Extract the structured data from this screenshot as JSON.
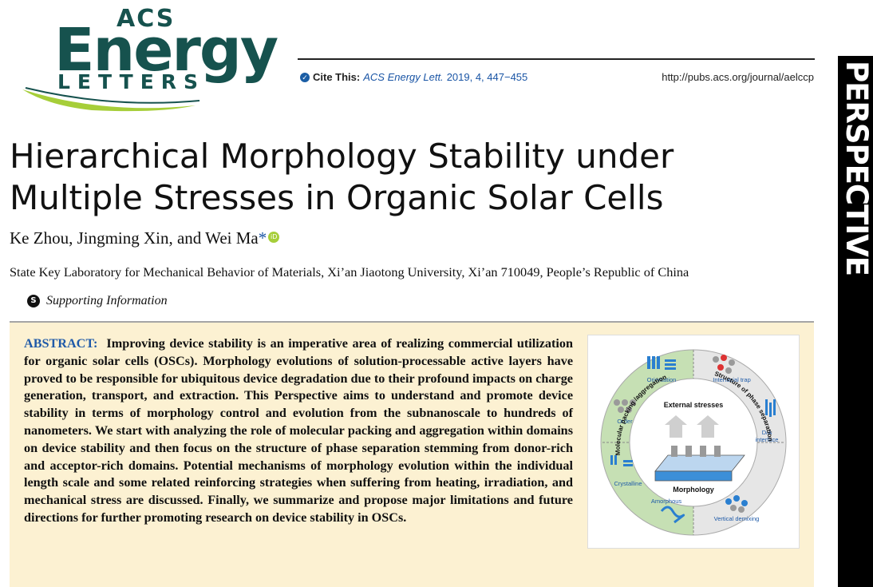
{
  "logo": {
    "acs": "ACS",
    "energy": "Energy",
    "letters": "LETTERS"
  },
  "cite": {
    "label": "Cite This:",
    "journal": "ACS Energy Lett.",
    "volume": "2019, 4, 447−455",
    "url": "http://pubs.acs.org/journal/aelccp"
  },
  "side_tab": "PERSPECTIVE",
  "title_line1": "Hierarchical Morphology Stability under",
  "title_line2": "Multiple Stresses in Organic Solar Cells",
  "authors": "Ke Zhou, Jingming Xin, and Wei Ma",
  "author_mark": "*",
  "affiliation": "State Key Laboratory for Mechanical Behavior of Materials, Xi’an Jiaotong University, Xi’an 710049, People’s Republic of China",
  "supporting": "Supporting Information",
  "abstract": {
    "label": "ABSTRACT:",
    "text": "Improving device stability is an imperative area of realizing commercial utilization for organic solar cells (OSCs). Morphology evolutions of solution-processable active layers have proved to be responsible for ubiquitous device degradation due to their profound impacts on charge generation, transport, and extraction. This Perspective aims to understand and promote device stability in terms of morphology control and evolution from the subnanoscale to hundreds of nanometers. We start with analyzing the role of molecular packing and aggregation within domains on device stability and then focus on the structure of phase separation stemming from donor-rich and acceptor-rich domains. Potential mechanisms of morphology evolution within the individual length scale and some related reinforcing strategies when suffering from heating, irradiation, and mechanical stress are discussed. Finally, we summarize and propose major limitations and future directions for further promoting research on device stability in OSCs."
  },
  "graphic": {
    "center_top": "External stresses",
    "center_bottom": "Morphology",
    "ring_left": "Molecular packing /aggregation",
    "ring_right": "Structure of phase separation",
    "segments": {
      "orientation": "Orientation",
      "order": "Order",
      "crystalline": "Crystalline",
      "amorphous": "Amorphous",
      "interfacial_trap": "Interfacial trap",
      "da_interface_1": "D/A",
      "da_interface_2": "interface",
      "vertical_demixing": "Vertical demixing"
    },
    "colors": {
      "left_ring": "#c6e0b4",
      "right_ring": "#e3e3e3",
      "blue": "#2a7fd0",
      "label": "#1e5aa8"
    }
  }
}
